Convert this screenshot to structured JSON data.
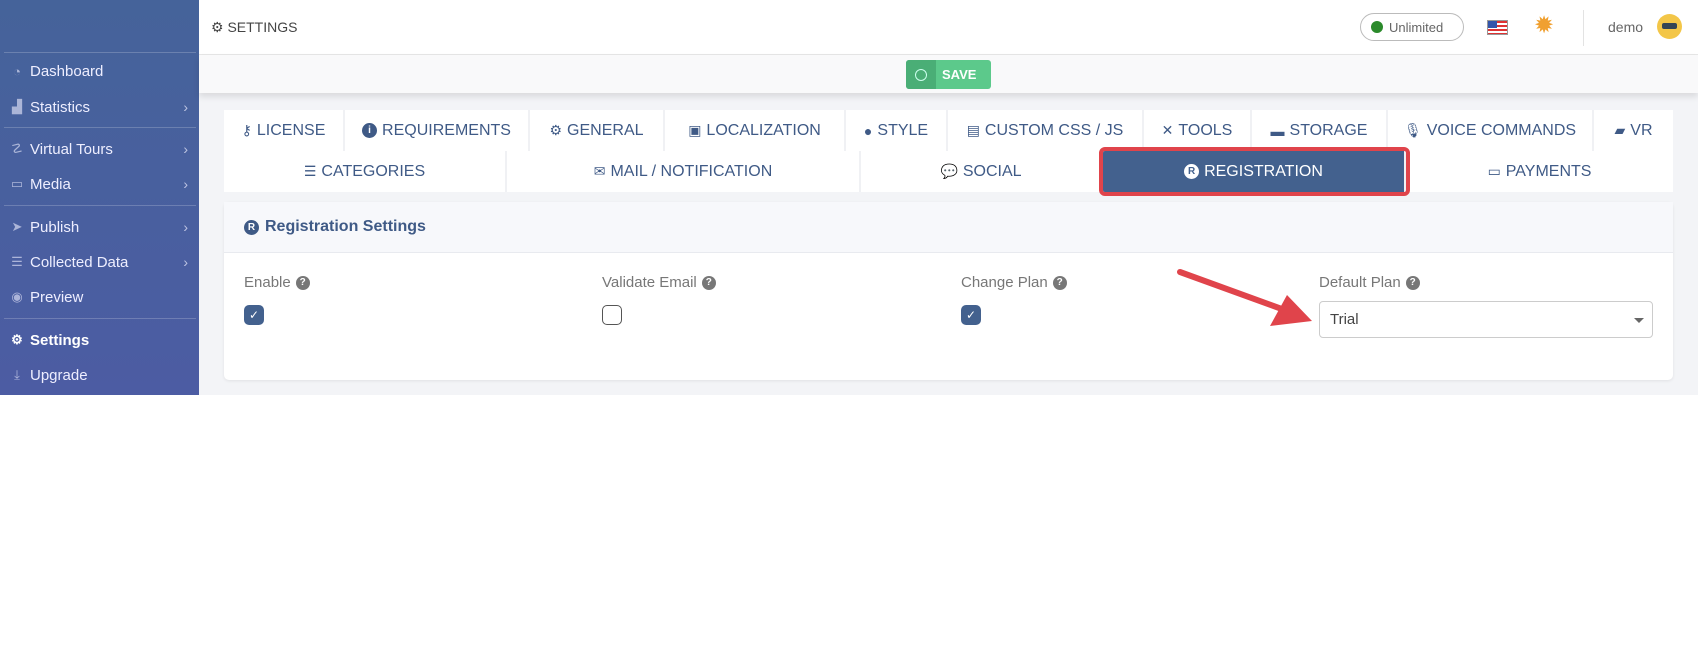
{
  "sidebar": {
    "items": [
      {
        "label": "Dashboard",
        "icon": "dashboard-icon"
      },
      {
        "label": "Statistics",
        "icon": "chart-icon"
      },
      {
        "label": "Virtual Tours",
        "icon": "route-icon"
      },
      {
        "label": "Media",
        "icon": "monitor-icon"
      },
      {
        "label": "Publish",
        "icon": "paper-plane-icon"
      },
      {
        "label": "Collected Data",
        "icon": "server-icon"
      },
      {
        "label": "Preview",
        "icon": "eye-icon"
      },
      {
        "label": "Settings",
        "icon": "gears-icon",
        "active": true
      },
      {
        "label": "Upgrade",
        "icon": "download-icon"
      }
    ]
  },
  "header": {
    "title": "SETTINGS",
    "plan_badge": "Unlimited",
    "user": "demo"
  },
  "toolbar": {
    "save_label": "SAVE"
  },
  "tabs_row1": [
    "LICENSE",
    "REQUIREMENTS",
    "GENERAL",
    "LOCALIZATION",
    "STYLE",
    "CUSTOM CSS / JS",
    "TOOLS",
    "STORAGE",
    "VOICE COMMANDS",
    "VR"
  ],
  "tabs_row2": [
    "CATEGORIES",
    "MAIL / NOTIFICATION",
    "SOCIAL",
    "REGISTRATION",
    "PAYMENTS"
  ],
  "active_tab": "REGISTRATION",
  "card": {
    "title": "Registration Settings",
    "fields": [
      {
        "label": "Enable",
        "checked": true
      },
      {
        "label": "Validate Email",
        "checked": false
      },
      {
        "label": "Change Plan",
        "checked": true
      },
      {
        "label": "Default Plan",
        "value": "Trial"
      }
    ]
  },
  "colors": {
    "accent": "#43618e",
    "highlight": "#e0444b",
    "save": "#5cc98b"
  }
}
